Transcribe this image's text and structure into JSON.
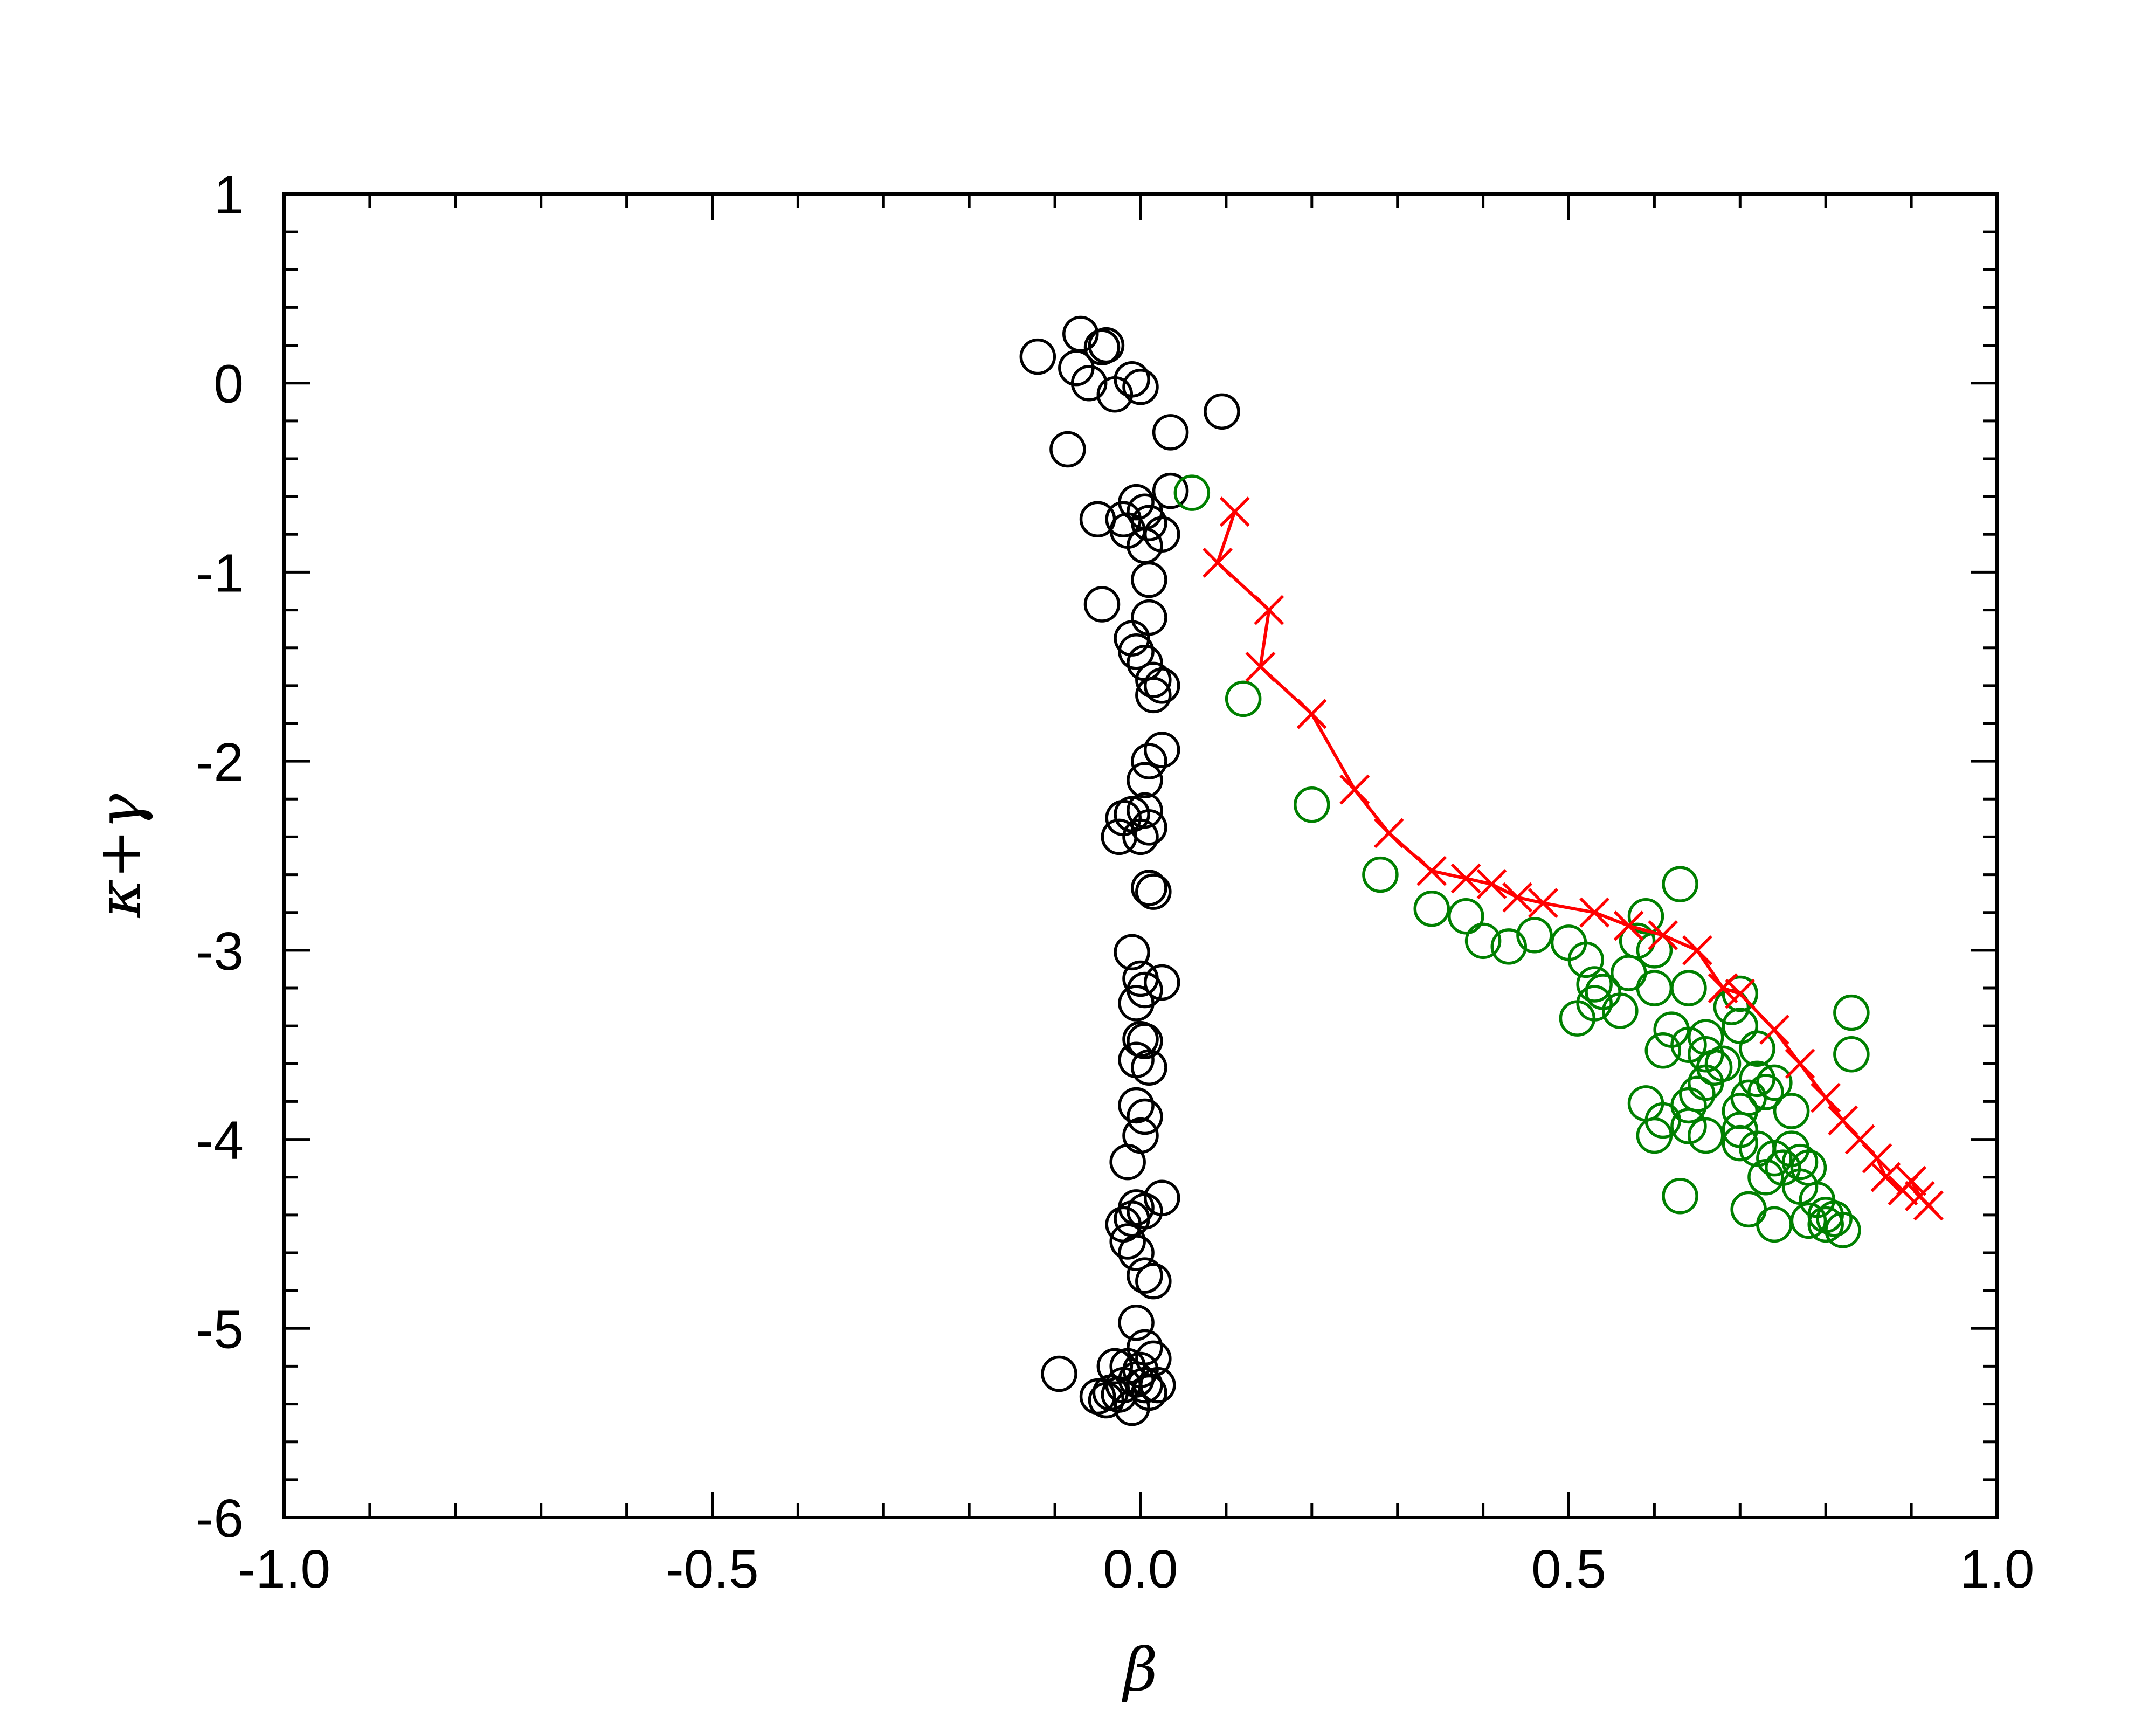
{
  "chart_data": {
    "type": "scatter",
    "title": "",
    "xlabel": "β",
    "ylabel": "κ+γ",
    "xlim": [
      -1.0,
      1.0
    ],
    "ylim": [
      -6,
      1
    ],
    "x_ticks": [
      {
        "value": -1.0,
        "label": "-1.0"
      },
      {
        "value": -0.5,
        "label": "-0.5"
      },
      {
        "value": 0.0,
        "label": "0.0"
      },
      {
        "value": 0.5,
        "label": "0.5"
      },
      {
        "value": 1.0,
        "label": "1.0"
      }
    ],
    "y_ticks": [
      {
        "value": 1,
        "label": "1"
      },
      {
        "value": 0,
        "label": "0"
      },
      {
        "value": -1,
        "label": "-1"
      },
      {
        "value": -2,
        "label": "-2"
      },
      {
        "value": -3,
        "label": "-3"
      },
      {
        "value": -4,
        "label": "-4"
      },
      {
        "value": -5,
        "label": "-5"
      },
      {
        "value": -6,
        "label": "-6"
      }
    ],
    "x_minor_step": 0.1,
    "y_minor_step": 0.2,
    "grid": false,
    "series": [
      {
        "marker": "circle",
        "color": "#000000",
        "points": [
          [
            -0.12,
            0.14
          ],
          [
            -0.07,
            0.26
          ],
          [
            -0.075,
            0.08
          ],
          [
            -0.06,
            0.0
          ],
          [
            -0.04,
            0.2
          ],
          [
            -0.045,
            0.19
          ],
          [
            -0.03,
            -0.06
          ],
          [
            -0.01,
            0.02
          ],
          [
            0.0,
            -0.02
          ],
          [
            0.095,
            -0.15
          ],
          [
            -0.085,
            -0.35
          ],
          [
            0.035,
            -0.26
          ],
          [
            0.035,
            -0.57
          ],
          [
            -0.005,
            -0.63
          ],
          [
            0.005,
            -0.68
          ],
          [
            -0.05,
            -0.72
          ],
          [
            -0.02,
            -0.72
          ],
          [
            -0.015,
            -0.78
          ],
          [
            0.01,
            -0.74
          ],
          [
            0.025,
            -0.8
          ],
          [
            0.005,
            -0.86
          ],
          [
            -0.045,
            -1.17
          ],
          [
            0.01,
            -1.04
          ],
          [
            0.01,
            -1.24
          ],
          [
            -0.01,
            -1.35
          ],
          [
            -0.005,
            -1.42
          ],
          [
            0.005,
            -1.48
          ],
          [
            0.015,
            -1.57
          ],
          [
            0.015,
            -1.65
          ],
          [
            0.025,
            -1.6
          ],
          [
            0.025,
            -1.94
          ],
          [
            0.01,
            -2.0
          ],
          [
            0.005,
            -2.1
          ],
          [
            -0.02,
            -2.3
          ],
          [
            -0.025,
            -2.4
          ],
          [
            -0.01,
            -2.28
          ],
          [
            0.005,
            -2.26
          ],
          [
            0.01,
            -2.35
          ],
          [
            0.0,
            -2.4
          ],
          [
            0.01,
            -2.67
          ],
          [
            0.015,
            -2.69
          ],
          [
            -0.01,
            -3.01
          ],
          [
            0.0,
            -3.15
          ],
          [
            0.005,
            -3.21
          ],
          [
            0.025,
            -3.17
          ],
          [
            -0.005,
            -3.28
          ],
          [
            0.0,
            -3.47
          ],
          [
            0.005,
            -3.48
          ],
          [
            -0.005,
            -3.58
          ],
          [
            0.01,
            -3.62
          ],
          [
            -0.005,
            -3.82
          ],
          [
            0.005,
            -3.88
          ],
          [
            0.0,
            -3.98
          ],
          [
            -0.015,
            -4.12
          ],
          [
            0.025,
            -4.31
          ],
          [
            -0.005,
            -4.36
          ],
          [
            0.005,
            -4.38
          ],
          [
            -0.01,
            -4.42
          ],
          [
            -0.02,
            -4.45
          ],
          [
            -0.015,
            -4.54
          ],
          [
            -0.005,
            -4.6
          ],
          [
            0.005,
            -4.72
          ],
          [
            0.015,
            -4.75
          ],
          [
            -0.005,
            -4.97
          ],
          [
            0.005,
            -5.1
          ],
          [
            0.015,
            -5.16
          ],
          [
            -0.015,
            -5.2
          ],
          [
            0.0,
            -5.22
          ],
          [
            -0.03,
            -5.2
          ],
          [
            -0.095,
            -5.24
          ],
          [
            -0.005,
            -5.27
          ],
          [
            0.005,
            -5.3
          ],
          [
            -0.02,
            -5.3
          ],
          [
            -0.035,
            -5.34
          ],
          [
            -0.05,
            -5.36
          ],
          [
            -0.04,
            -5.38
          ],
          [
            -0.025,
            -5.35
          ],
          [
            -0.01,
            -5.42
          ],
          [
            0.01,
            -5.34
          ],
          [
            0.02,
            -5.3
          ]
        ]
      },
      {
        "marker": "circle",
        "color": "#008000",
        "points": [
          [
            0.06,
            -0.58
          ],
          [
            0.12,
            -1.67
          ],
          [
            0.2,
            -2.23
          ],
          [
            0.28,
            -2.6
          ],
          [
            0.34,
            -2.78
          ],
          [
            0.38,
            -2.82
          ],
          [
            0.4,
            -2.95
          ],
          [
            0.43,
            -2.98
          ],
          [
            0.46,
            -2.92
          ],
          [
            0.5,
            -2.96
          ],
          [
            0.52,
            -3.05
          ],
          [
            0.53,
            -3.18
          ],
          [
            0.54,
            -3.22
          ],
          [
            0.53,
            -3.28
          ],
          [
            0.51,
            -3.36
          ],
          [
            0.56,
            -3.32
          ],
          [
            0.57,
            -3.12
          ],
          [
            0.59,
            -2.82
          ],
          [
            0.58,
            -2.95
          ],
          [
            0.6,
            -3.0
          ],
          [
            0.6,
            -3.2
          ],
          [
            0.63,
            -2.65
          ],
          [
            0.64,
            -3.2
          ],
          [
            0.62,
            -3.42
          ],
          [
            0.61,
            -3.53
          ],
          [
            0.64,
            -3.5
          ],
          [
            0.66,
            -3.46
          ],
          [
            0.66,
            -3.55
          ],
          [
            0.67,
            -3.62
          ],
          [
            0.68,
            -3.6
          ],
          [
            0.7,
            -3.23
          ],
          [
            0.7,
            -3.4
          ],
          [
            0.69,
            -3.3
          ],
          [
            0.72,
            -3.52
          ],
          [
            0.72,
            -3.68
          ],
          [
            0.73,
            -3.75
          ],
          [
            0.74,
            -3.7
          ],
          [
            0.71,
            -3.78
          ],
          [
            0.7,
            -3.85
          ],
          [
            0.66,
            -3.7
          ],
          [
            0.65,
            -3.76
          ],
          [
            0.64,
            -3.82
          ],
          [
            0.59,
            -3.81
          ],
          [
            0.61,
            -3.9
          ],
          [
            0.6,
            -3.98
          ],
          [
            0.64,
            -3.93
          ],
          [
            0.66,
            -3.98
          ],
          [
            0.7,
            -3.95
          ],
          [
            0.7,
            -4.02
          ],
          [
            0.72,
            -4.05
          ],
          [
            0.74,
            -4.1
          ],
          [
            0.76,
            -4.05
          ],
          [
            0.77,
            -4.12
          ],
          [
            0.78,
            -4.15
          ],
          [
            0.75,
            -4.15
          ],
          [
            0.73,
            -4.2
          ],
          [
            0.76,
            -3.85
          ],
          [
            0.77,
            -4.25
          ],
          [
            0.79,
            -4.32
          ],
          [
            0.8,
            -4.4
          ],
          [
            0.81,
            -4.42
          ],
          [
            0.82,
            -4.48
          ],
          [
            0.8,
            -4.45
          ],
          [
            0.78,
            -4.43
          ],
          [
            0.74,
            -4.45
          ],
          [
            0.71,
            -4.37
          ],
          [
            0.63,
            -4.3
          ],
          [
            0.83,
            -3.55
          ],
          [
            0.83,
            -3.33
          ]
        ]
      },
      {
        "marker": "x",
        "color": "#ff0000",
        "line": true,
        "points": [
          [
            0.11,
            -0.68
          ],
          [
            0.09,
            -0.95
          ],
          [
            0.15,
            -1.2
          ],
          [
            0.14,
            -1.5
          ],
          [
            0.2,
            -1.75
          ],
          [
            0.25,
            -2.15
          ],
          [
            0.29,
            -2.38
          ],
          [
            0.34,
            -2.58
          ],
          [
            0.38,
            -2.62
          ],
          [
            0.41,
            -2.65
          ],
          [
            0.44,
            -2.72
          ],
          [
            0.47,
            -2.75
          ],
          [
            0.53,
            -2.8
          ],
          [
            0.57,
            -2.87
          ],
          [
            0.61,
            -2.92
          ],
          [
            0.65,
            -3.0
          ],
          [
            0.68,
            -3.2
          ],
          [
            0.7,
            -3.23
          ],
          [
            0.74,
            -3.42
          ],
          [
            0.77,
            -3.6
          ],
          [
            0.8,
            -3.78
          ],
          [
            0.82,
            -3.9
          ],
          [
            0.84,
            -4.0
          ],
          [
            0.86,
            -4.1
          ],
          [
            0.87,
            -4.2
          ],
          [
            0.89,
            -4.27
          ],
          [
            0.9,
            -4.22
          ],
          [
            0.91,
            -4.3
          ],
          [
            0.92,
            -4.35
          ]
        ]
      }
    ]
  }
}
